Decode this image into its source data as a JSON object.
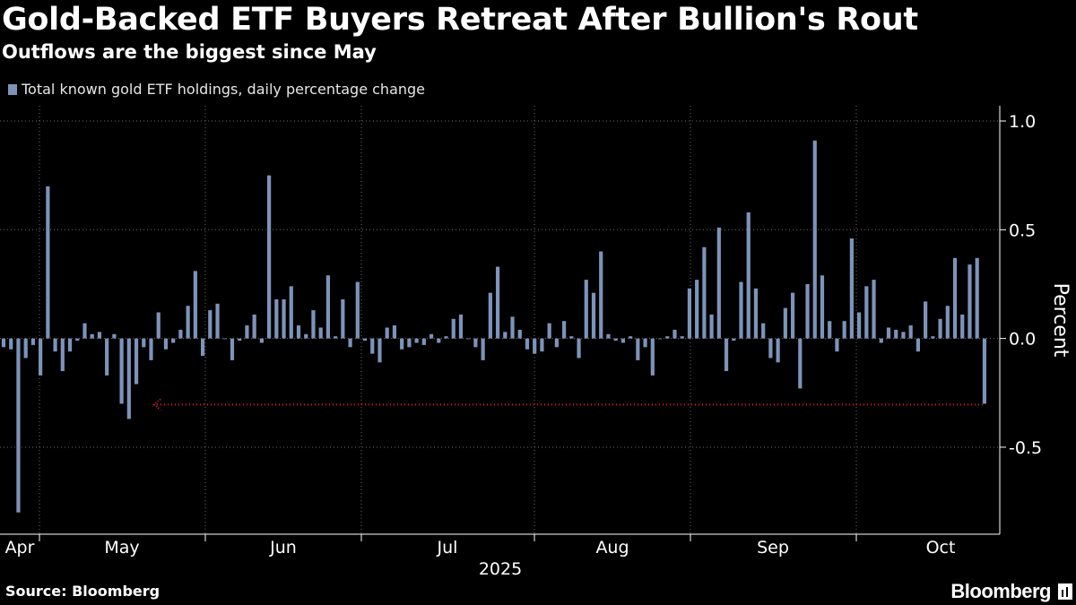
{
  "header": {
    "title": "Gold-Backed ETF Buyers Retreat After Bullion's Rout",
    "subtitle": "Outflows are the biggest since May"
  },
  "footer": {
    "source": "Source: Bloomberg",
    "brand": "Bloomberg"
  },
  "colors": {
    "background": "#000000",
    "bar": "#7d93b9",
    "grid": "#6e6e6e",
    "annotation": "#e8202a",
    "text": "#ffffff"
  },
  "chart_data": {
    "type": "bar",
    "legend": "Total known gold ETF holdings, daily percentage change",
    "ylabel": "Percent",
    "ylim": [
      -0.9,
      1.07
    ],
    "yticks": [
      1.0,
      0.5,
      0.0,
      -0.5
    ],
    "ytick_labels": [
      "1.0",
      "0.5",
      "0.0",
      "-0.5"
    ],
    "grid": "dotted",
    "month_labels": [
      "Apr",
      "May",
      "Jun",
      "Jul",
      "Aug",
      "Sep",
      "Oct"
    ],
    "year_label": "2025",
    "annotation": "dotted arrow from last bar back to the early-May outflow",
    "series": [
      {
        "values": [
          -0.04,
          -0.05,
          -0.8,
          -0.09,
          -0.03,
          -0.17,
          0.7,
          -0.06,
          -0.15,
          -0.06,
          -0.01,
          0.07,
          0.02,
          0.03,
          -0.17,
          0.02,
          -0.3,
          -0.37,
          -0.21,
          -0.04,
          -0.1,
          0.12,
          -0.05,
          -0.02,
          0.04,
          0.15,
          0.31,
          -0.08,
          0.13,
          0.16,
          0.0,
          -0.1,
          -0.01,
          0.06,
          0.11,
          -0.02,
          0.75,
          0.18,
          0.18,
          0.24,
          0.06,
          0.02,
          0.13,
          0.05,
          0.29,
          0.01,
          0.18,
          -0.04,
          0.26,
          -0.01,
          -0.07,
          -0.11,
          0.05,
          0.06,
          -0.05,
          -0.04,
          -0.02,
          -0.03,
          0.02,
          -0.02,
          0.01,
          0.09,
          0.11,
          0.0,
          -0.04,
          -0.1,
          0.21,
          0.33,
          0.03,
          0.1,
          0.04,
          -0.05,
          -0.07,
          -0.06,
          0.07,
          -0.04,
          0.08,
          0.01,
          -0.09,
          0.27,
          0.21,
          0.4,
          0.02,
          -0.01,
          -0.02,
          0.01,
          -0.1,
          -0.04,
          -0.17,
          0.0,
          0.01,
          0.04,
          0.01,
          0.23,
          0.27,
          0.42,
          0.11,
          0.51,
          -0.15,
          -0.01,
          0.26,
          0.58,
          0.23,
          0.07,
          -0.09,
          -0.11,
          0.14,
          0.21,
          -0.23,
          0.25,
          0.91,
          0.29,
          0.08,
          -0.06,
          0.08,
          0.46,
          0.12,
          0.24,
          0.27,
          -0.02,
          0.05,
          0.04,
          0.03,
          0.06,
          -0.06,
          0.17,
          0.01,
          0.09,
          0.15,
          0.37,
          0.11,
          0.34,
          0.37,
          -0.3
        ]
      }
    ]
  }
}
